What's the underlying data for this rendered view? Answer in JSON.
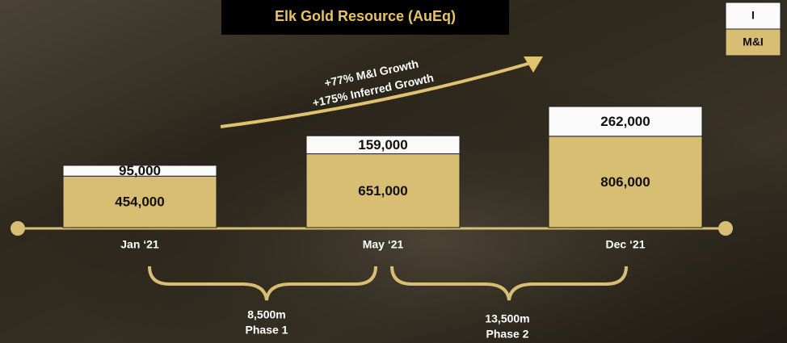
{
  "chart_data": {
    "type": "bar",
    "stacked": true,
    "title": "Elk Gold Resource (AuEq)",
    "categories": [
      "Jan ‘21",
      "May ‘21",
      "Dec ‘21"
    ],
    "series": [
      {
        "name": "M&I",
        "color": "#d8be72",
        "values": [
          454000,
          651000,
          806000
        ],
        "value_labels": [
          "454,000",
          "651,000",
          "806,000"
        ]
      },
      {
        "name": "I",
        "color": "#fafafa",
        "values": [
          95000,
          159000,
          262000
        ],
        "value_labels": [
          "95,000",
          "159,000",
          "262,000"
        ]
      }
    ],
    "annotations": [
      "+77% M&I Growth",
      "+175% Inferred Growth"
    ],
    "phases": [
      {
        "length": "8,500m",
        "label": "Phase 1"
      },
      {
        "length": "13,500m",
        "label": "Phase 2"
      }
    ]
  }
}
